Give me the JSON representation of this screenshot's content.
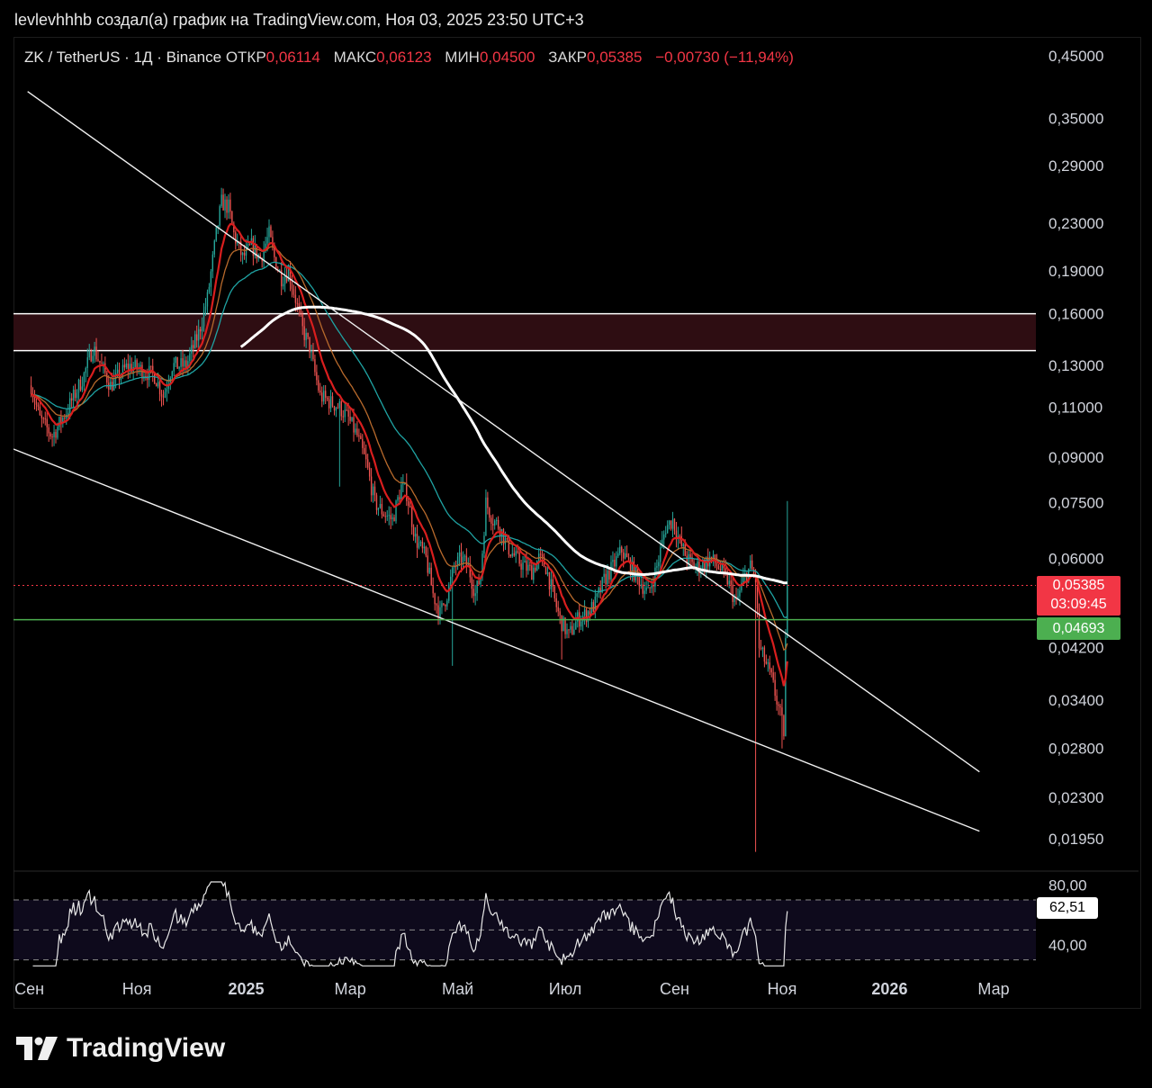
{
  "header": {
    "title": "levlevhhhb создал(а) график на TradingView.com, Ноя 03, 2025 23:50 UTC+3"
  },
  "legend": {
    "symbol": "ZK / TetherUS · 1Д · Binance",
    "open_label": "ОТКР",
    "open": "0,06114",
    "high_label": "МАКС",
    "high": "0,06123",
    "low_label": "МИН",
    "low": "0,04500",
    "close_label": "ЗАКР",
    "close": "0,05385",
    "change": "−0,00730 (−11,94%)"
  },
  "price_tags": {
    "last_price": "0,05385",
    "countdown": "03:09:45",
    "support_line": "0,04693",
    "rsi_value": "62,51"
  },
  "brand": {
    "logo_text": "TradingView"
  },
  "colors": {
    "up": "#26a69a",
    "down": "#ef5350",
    "accent_red": "#f23645",
    "ma_red": "#d91e1e",
    "ma_orange": "#b86a2c",
    "ma_teal": "#1fa3a3",
    "ma_white": "#ffffff",
    "zone_fill": "#2e0d12",
    "support_green": "#4caf50",
    "rsi_line": "#e8e8e8"
  },
  "chart_data": {
    "type": "candlestick",
    "title": "ZK / TetherUS · 1Д · Binance",
    "scale": "log",
    "ylim": [
      0.0185,
      0.47
    ],
    "y_ticks": [
      "0,45000",
      "0,35000",
      "0,29000",
      "0,23000",
      "0,19000",
      "0,16000",
      "0,13000",
      "0,11000",
      "0,09000",
      "0,07500",
      "0,06000",
      "0,04200",
      "0,03400",
      "0,02800",
      "0,02300",
      "0,01950"
    ],
    "y_tick_values": [
      0.45,
      0.35,
      0.29,
      0.23,
      0.19,
      0.16,
      0.13,
      0.11,
      0.09,
      0.075,
      0.06,
      0.042,
      0.034,
      0.028,
      0.023,
      0.0195
    ],
    "x_ticks": [
      "Сен",
      "Ноя",
      "2025",
      "Мар",
      "Май",
      "Июл",
      "Сен",
      "Ноя",
      "2026",
      "Мар"
    ],
    "x_tick_bold": [
      false,
      false,
      true,
      false,
      false,
      false,
      false,
      false,
      true,
      false
    ],
    "x_tick_days": [
      -1,
      60,
      122,
      181,
      242,
      303,
      365,
      426,
      487,
      546
    ],
    "x_domain_days": [
      -10,
      570
    ],
    "last_day": 429,
    "price_path_anchors": [
      [
        0,
        0.12
      ],
      [
        5,
        0.105
      ],
      [
        12,
        0.098
      ],
      [
        20,
        0.108
      ],
      [
        30,
        0.125
      ],
      [
        35,
        0.14
      ],
      [
        45,
        0.12
      ],
      [
        55,
        0.13
      ],
      [
        62,
        0.128
      ],
      [
        70,
        0.125
      ],
      [
        75,
        0.115
      ],
      [
        80,
        0.13
      ],
      [
        88,
        0.13
      ],
      [
        95,
        0.148
      ],
      [
        100,
        0.17
      ],
      [
        105,
        0.22
      ],
      [
        108,
        0.25
      ],
      [
        112,
        0.245
      ],
      [
        115,
        0.22
      ],
      [
        120,
        0.2
      ],
      [
        125,
        0.21
      ],
      [
        130,
        0.2
      ],
      [
        135,
        0.22
      ],
      [
        138,
        0.2
      ],
      [
        142,
        0.185
      ],
      [
        146,
        0.19
      ],
      [
        150,
        0.17
      ],
      [
        154,
        0.15
      ],
      [
        158,
        0.14
      ],
      [
        160,
        0.13
      ],
      [
        164,
        0.115
      ],
      [
        170,
        0.112
      ],
      [
        175,
        0.11
      ],
      [
        180,
        0.105
      ],
      [
        185,
        0.098
      ],
      [
        190,
        0.088
      ],
      [
        195,
        0.075
      ],
      [
        200,
        0.072
      ],
      [
        205,
        0.07
      ],
      [
        210,
        0.08
      ],
      [
        213,
        0.078
      ],
      [
        218,
        0.065
      ],
      [
        224,
        0.06
      ],
      [
        228,
        0.052
      ],
      [
        232,
        0.048
      ],
      [
        236,
        0.052
      ],
      [
        240,
        0.058
      ],
      [
        244,
        0.06
      ],
      [
        248,
        0.058
      ],
      [
        252,
        0.052
      ],
      [
        255,
        0.056
      ],
      [
        258,
        0.075
      ],
      [
        262,
        0.07
      ],
      [
        266,
        0.068
      ],
      [
        270,
        0.063
      ],
      [
        275,
        0.06
      ],
      [
        280,
        0.058
      ],
      [
        284,
        0.057
      ],
      [
        288,
        0.06
      ],
      [
        292,
        0.058
      ],
      [
        296,
        0.052
      ],
      [
        300,
        0.047
      ],
      [
        305,
        0.044
      ],
      [
        310,
        0.047
      ],
      [
        315,
        0.048
      ],
      [
        320,
        0.05
      ],
      [
        325,
        0.055
      ],
      [
        330,
        0.058
      ],
      [
        335,
        0.062
      ],
      [
        340,
        0.058
      ],
      [
        345,
        0.055
      ],
      [
        350,
        0.052
      ],
      [
        355,
        0.058
      ],
      [
        360,
        0.068
      ],
      [
        364,
        0.07
      ],
      [
        368,
        0.064
      ],
      [
        372,
        0.06
      ],
      [
        376,
        0.058
      ],
      [
        380,
        0.058
      ],
      [
        385,
        0.06
      ],
      [
        390,
        0.058
      ],
      [
        395,
        0.055
      ],
      [
        400,
        0.05
      ],
      [
        404,
        0.055
      ],
      [
        408,
        0.058
      ],
      [
        411,
        0.055
      ],
      [
        413,
        0.042
      ],
      [
        416,
        0.04
      ],
      [
        420,
        0.037
      ],
      [
        424,
        0.033
      ],
      [
        427,
        0.03
      ],
      [
        428,
        0.043
      ],
      [
        429,
        0.054
      ]
    ],
    "indicators": {
      "ema_short": "red",
      "ema_mid": "orange",
      "ema_long": "teal",
      "sma_200": "white"
    },
    "resistance_zone": {
      "low": 0.138,
      "high": 0.16
    },
    "support_level": 0.04693,
    "last_price": 0.05385,
    "trendlines": [
      {
        "name": "upper",
        "from": [
          -2,
          0.39
        ],
        "to": [
          538,
          0.0255
        ]
      },
      {
        "name": "lower",
        "from": [
          -10,
          0.093
        ],
        "to": [
          538,
          0.0201
        ]
      }
    ],
    "rsi": {
      "y_ticks": [
        "80,00",
        "40,00"
      ],
      "y_tick_values": [
        80,
        40
      ],
      "levels": [
        70,
        50,
        30
      ],
      "ylim": [
        22,
        88
      ],
      "value": 62.51
    }
  }
}
